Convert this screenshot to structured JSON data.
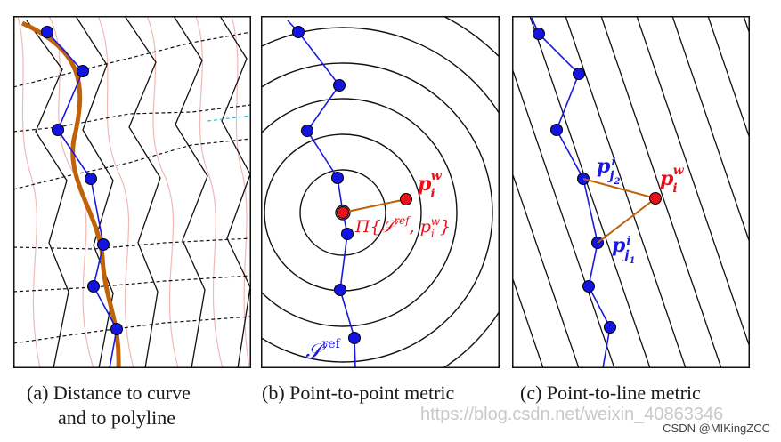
{
  "panels": {
    "a": {
      "caption_line1": "(a) Distance to curve",
      "caption_line2": "and to polyline"
    },
    "b": {
      "caption": "(b) Point-to-point metric",
      "label_point": "p",
      "label_point_sub": "i",
      "label_point_sup": "w",
      "label_projection": "Π{𝒮",
      "label_projection_sup": "ref",
      "label_projection_tail": ", p",
      "label_projection_sub": "i",
      "label_projection_sup2": "w",
      "label_projection_close": "}",
      "label_ref": "𝒮",
      "label_ref_sup": "ref"
    },
    "c": {
      "caption": "(c) Point-to-line metric",
      "label_point": "p",
      "label_point_sub": "i",
      "label_point_sup": "w",
      "label_j2": "p",
      "label_j2_sub": "j",
      "label_j2_subsub": "2",
      "label_j2_sup": "i",
      "label_j1": "p",
      "label_j1_sub": "j",
      "label_j1_subsub": "1",
      "label_j1_sup": "i"
    }
  },
  "watermark": "https://blog.csdn.net/weixin_40863346",
  "credit": "CSDN @MIKingZCC",
  "colors": {
    "blue": "#1a1adb",
    "red": "#e8101a",
    "orange": "#c0620a",
    "pink": "#f2b8b8",
    "cyan": "#22c6d8"
  }
}
